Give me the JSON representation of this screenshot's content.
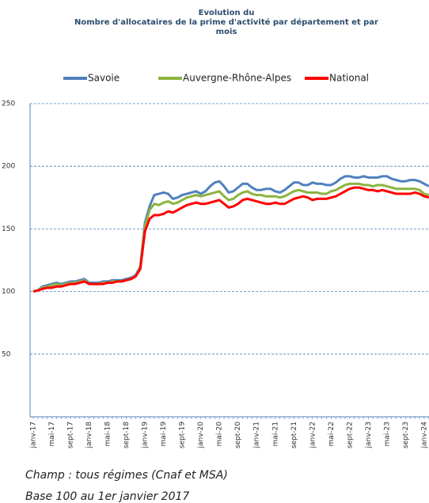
{
  "chart_data": {
    "type": "line",
    "title_lines": [
      "Evolution du",
      "Nombre d'allocataires de la prime d'activité par département et par",
      "mois"
    ],
    "categories": [
      "janv-17",
      null,
      null,
      null,
      "mai-17",
      null,
      null,
      null,
      "sept-17",
      null,
      null,
      null,
      "janv-18",
      null,
      null,
      null,
      "mai-18",
      null,
      null,
      null,
      "sept-18",
      null,
      null,
      null,
      "janv-19",
      null,
      null,
      null,
      "mai-19",
      null,
      null,
      null,
      "sept-19",
      null,
      null,
      null,
      "janv-20",
      null,
      null,
      null,
      "mai-20",
      null,
      null,
      null,
      "sept-20",
      null,
      null,
      null,
      "janv-21",
      null,
      null,
      null,
      "mai-21",
      null,
      null,
      null,
      "sept-21",
      null,
      null,
      null,
      "janv-22",
      null,
      null,
      null,
      "mai-22",
      null,
      null,
      null,
      "sept-22",
      null,
      null,
      null,
      "janv-23",
      null,
      null,
      null,
      "mai-23",
      null,
      null,
      null,
      "sept-23",
      null,
      null,
      null,
      "janv-24",
      null
    ],
    "series": [
      {
        "name": "Savoie",
        "color": "#4f81bd",
        "values": [
          100,
          101,
          104,
          105,
          106,
          107,
          106,
          107,
          108,
          108,
          109,
          110,
          107,
          107,
          107,
          108,
          108,
          109,
          109,
          109,
          110,
          111,
          113,
          120,
          155,
          168,
          177,
          178,
          179,
          178,
          174,
          175,
          177,
          178,
          179,
          180,
          178,
          180,
          184,
          187,
          188,
          184,
          179,
          180,
          183,
          186,
          186,
          183,
          181,
          181,
          182,
          182,
          180,
          179,
          181,
          184,
          187,
          187,
          185,
          185,
          187,
          186,
          186,
          185,
          185,
          187,
          190,
          192,
          192,
          191,
          191,
          192,
          191,
          191,
          191,
          192,
          192,
          190,
          189,
          188,
          188,
          189,
          189,
          188,
          186,
          184
        ]
      },
      {
        "name": "Auvergne-Rhône-Alpes",
        "color": "#8db33f",
        "values": [
          100,
          101,
          103,
          104,
          105,
          106,
          105,
          106,
          107,
          107,
          108,
          109,
          106,
          106,
          106,
          107,
          107,
          108,
          108,
          108,
          109,
          110,
          112,
          119,
          152,
          165,
          170,
          169,
          171,
          172,
          170,
          171,
          173,
          175,
          176,
          177,
          176,
          177,
          178,
          179,
          180,
          176,
          173,
          174,
          177,
          179,
          180,
          178,
          177,
          177,
          176,
          176,
          176,
          175,
          176,
          178,
          180,
          181,
          180,
          179,
          179,
          179,
          178,
          178,
          180,
          181,
          183,
          185,
          186,
          186,
          186,
          185,
          185,
          184,
          185,
          185,
          184,
          183,
          182,
          182,
          182,
          182,
          182,
          181,
          178,
          177
        ]
      },
      {
        "name": "National",
        "color": "#ff0000",
        "values": [
          100,
          101,
          102,
          103,
          103,
          104,
          104,
          105,
          106,
          106,
          107,
          108,
          106,
          106,
          106,
          106,
          107,
          107,
          108,
          108,
          109,
          110,
          112,
          118,
          148,
          158,
          161,
          161,
          162,
          164,
          163,
          165,
          167,
          169,
          170,
          171,
          170,
          170,
          171,
          172,
          173,
          170,
          167,
          168,
          170,
          173,
          174,
          173,
          172,
          171,
          170,
          170,
          171,
          170,
          170,
          172,
          174,
          175,
          176,
          175,
          173,
          174,
          174,
          174,
          175,
          176,
          178,
          180,
          182,
          183,
          183,
          182,
          181,
          181,
          180,
          181,
          180,
          179,
          178,
          178,
          178,
          178,
          179,
          178,
          176,
          175
        ]
      }
    ],
    "ylim": [
      0,
      250
    ],
    "yticks": [
      50,
      100,
      150,
      200,
      250
    ],
    "grid": true,
    "notes": [
      "Champ : tous régimes (Cnaf et MSA)",
      "Base 100 au 1er janvier 2017"
    ]
  }
}
